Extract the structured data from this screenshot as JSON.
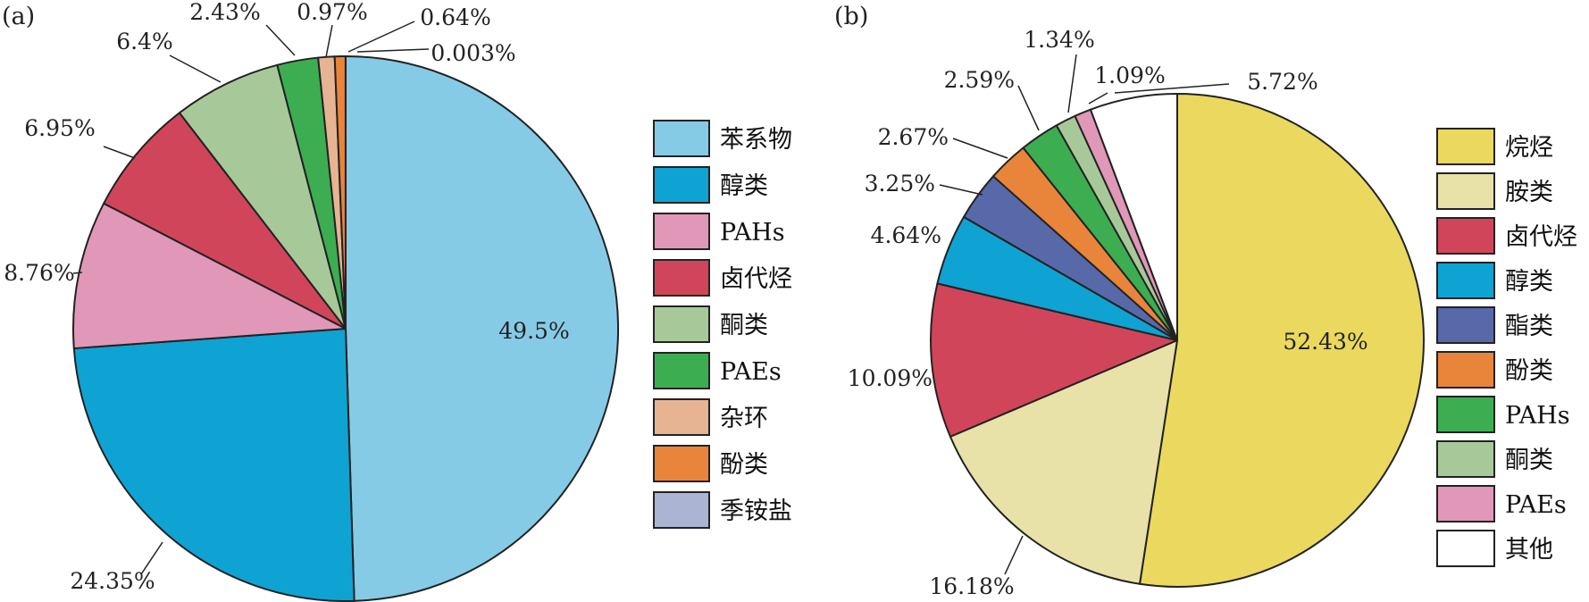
{
  "chart_data": [
    {
      "type": "pie",
      "panel_label": "(a)",
      "slices": [
        {
          "label": "苯系物",
          "value": 49.5,
          "value_label": "49.5%",
          "color": "#86CBE6"
        },
        {
          "label": "醇类",
          "value": 24.35,
          "value_label": "24.35%",
          "color": "#0EA3D2"
        },
        {
          "label": "PAHs",
          "value": 8.76,
          "value_label": "8.76%",
          "color": "#E097B8"
        },
        {
          "label": "卤代烃",
          "value": 6.95,
          "value_label": "6.95%",
          "color": "#D1455B"
        },
        {
          "label": "酮类",
          "value": 6.4,
          "value_label": "6.4%",
          "color": "#A7C99A"
        },
        {
          "label": "PAEs",
          "value": 2.43,
          "value_label": "2.43%",
          "color": "#3CAE51"
        },
        {
          "label": "杂环",
          "value": 0.97,
          "value_label": "0.97%",
          "color": "#E6B493"
        },
        {
          "label": "酚类",
          "value": 0.64,
          "value_label": "0.64%",
          "color": "#E8853A"
        },
        {
          "label": "季铵盐",
          "value": 0.003,
          "value_label": "0.003%",
          "color": "#ABB4D3"
        }
      ]
    },
    {
      "type": "pie",
      "panel_label": "(b)",
      "slices": [
        {
          "label": "烷烃",
          "value": 52.43,
          "value_label": "52.43%",
          "color": "#EAD95E"
        },
        {
          "label": "胺类",
          "value": 16.18,
          "value_label": "16.18%",
          "color": "#E8E1A8"
        },
        {
          "label": "卤代烃",
          "value": 10.09,
          "value_label": "10.09%",
          "color": "#D1455B"
        },
        {
          "label": "醇类",
          "value": 4.64,
          "value_label": "4.64%",
          "color": "#0EA3D2"
        },
        {
          "label": "酯类",
          "value": 3.25,
          "value_label": "3.25%",
          "color": "#5769A9"
        },
        {
          "label": "酚类",
          "value": 2.67,
          "value_label": "2.67%",
          "color": "#E8853A"
        },
        {
          "label": "PAHs",
          "value": 2.59,
          "value_label": "2.59%",
          "color": "#3CAE51"
        },
        {
          "label": "酮类",
          "value": 1.34,
          "value_label": "1.34%",
          "color": "#A7C99A"
        },
        {
          "label": "PAEs",
          "value": 1.09,
          "value_label": "1.09%",
          "color": "#E097B8"
        },
        {
          "label": "其他",
          "value": 5.72,
          "value_label": "5.72%",
          "color": "#FFFFFF"
        }
      ]
    }
  ]
}
